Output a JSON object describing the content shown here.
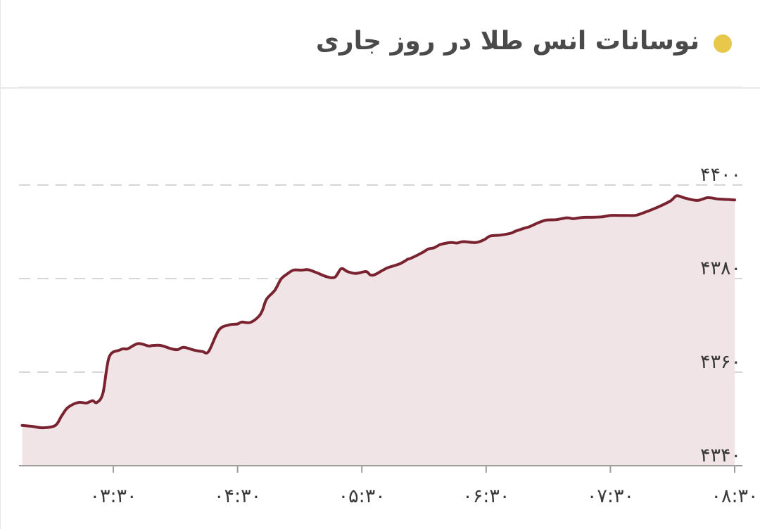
{
  "header": {
    "title": "نوسانات انس طلا در روز جاری",
    "dot_color": "#E8C84A"
  },
  "chart_data": {
    "type": "area",
    "x_tick_labels": [
      "۰۳:۳۰",
      "۰۴:۳۰",
      "۰۵:۳۰",
      "۰۶:۳۰",
      "۰۷:۳۰",
      "۰۸:۳۰"
    ],
    "x_tick_times_min": [
      210,
      270,
      330,
      390,
      450,
      510
    ],
    "y_tick_labels": [
      "۴۴۰۰",
      "۴۳۸۰",
      "۴۳۶۰",
      "۴۳۴۰"
    ],
    "y_tick_values": [
      4400,
      4380,
      4360,
      4340
    ],
    "ylim": [
      4340,
      4400
    ],
    "grid": true,
    "grid_style": "dashed-horizontal",
    "line_color": "#7A2330",
    "fill_color": "#F1E4E6",
    "series": [
      {
        "x_min": [
          166,
          171,
          176,
          182,
          185,
          188,
          193,
          197,
          200,
          202,
          205,
          208,
          213,
          215,
          217,
          222,
          227,
          229,
          233,
          238,
          241,
          244,
          249,
          253,
          256,
          261,
          266,
          270,
          272,
          276,
          280,
          282,
          284,
          288,
          291,
          294,
          297,
          301,
          304,
          308,
          313,
          317,
          320,
          323,
          327,
          332,
          334,
          336,
          339,
          341,
          343,
          348,
          351,
          352,
          354,
          359,
          362,
          365,
          368,
          373,
          376,
          379,
          385,
          389,
          392,
          397,
          402,
          404,
          408,
          411,
          415,
          419,
          424,
          429,
          432,
          435,
          438,
          441,
          446,
          450,
          454,
          458,
          462,
          465,
          472,
          479,
          482,
          486,
          492,
          497,
          502,
          507,
          510
        ],
        "values": [
          4348.6,
          4348.4,
          4348.1,
          4348.6,
          4350.6,
          4352.4,
          4353.5,
          4353.4,
          4353.9,
          4353.5,
          4355.5,
          4363.2,
          4364.7,
          4365.0,
          4365.0,
          4366.1,
          4365.6,
          4365.7,
          4365.7,
          4365.0,
          4364.8,
          4365.3,
          4364.7,
          4364.4,
          4364.4,
          4369.0,
          4370.1,
          4370.3,
          4370.7,
          4370.6,
          4371.8,
          4373.2,
          4375.6,
          4377.5,
          4379.9,
          4381.0,
          4381.8,
          4381.8,
          4381.9,
          4381.3,
          4380.4,
          4380.3,
          4382.1,
          4381.5,
          4381.1,
          4381.5,
          4380.8,
          4380.8,
          4381.5,
          4382.0,
          4382.4,
          4383.1,
          4383.8,
          4384.1,
          4384.4,
          4385.5,
          4386.3,
          4386.6,
          4387.3,
          4387.7,
          4387.6,
          4387.9,
          4387.7,
          4388.3,
          4389.1,
          4389.3,
          4389.7,
          4390.1,
          4390.7,
          4391.1,
          4391.9,
          4392.5,
          4392.6,
          4393.0,
          4392.8,
          4393.0,
          4393.1,
          4393.1,
          4393.2,
          4393.5,
          4393.5,
          4393.5,
          4393.5,
          4393.9,
          4395.1,
          4396.6,
          4397.7,
          4397.2,
          4396.7,
          4397.3,
          4397.0,
          4396.9,
          4396.8
        ]
      }
    ]
  }
}
